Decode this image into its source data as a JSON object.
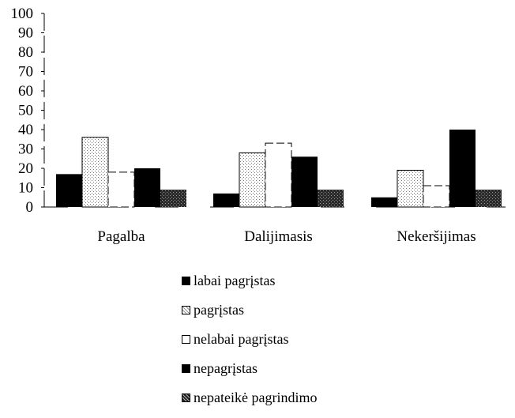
{
  "chart_data": {
    "type": "bar",
    "categories": [
      "Pagalba",
      "Dalijimasis",
      "Nekeršijimas"
    ],
    "series": [
      {
        "name": "labai pagrįstas",
        "values": [
          17,
          7,
          5
        ],
        "color": "#000000",
        "pattern": "solid"
      },
      {
        "name": "pagrįstas",
        "values": [
          36,
          28,
          19
        ],
        "color": "#bbbbbb",
        "pattern": "light-dots"
      },
      {
        "name": "nelabai pagrįstas",
        "values": [
          18,
          33,
          11
        ],
        "color": "#ffffff",
        "pattern": "outline"
      },
      {
        "name": "nepagrįstas",
        "values": [
          20,
          26,
          40
        ],
        "color": "#000000",
        "pattern": "solid"
      },
      {
        "name": "nepateikė pagrindimo",
        "values": [
          9,
          9,
          9
        ],
        "color": "#333333",
        "pattern": "dark-dots"
      }
    ],
    "ylim": [
      0,
      100
    ],
    "yticks": [
      0,
      10,
      20,
      30,
      40,
      50,
      60,
      70,
      80,
      90,
      100
    ],
    "title": "",
    "xlabel": "",
    "ylabel": "",
    "grid": false,
    "legend_position": "bottom"
  }
}
